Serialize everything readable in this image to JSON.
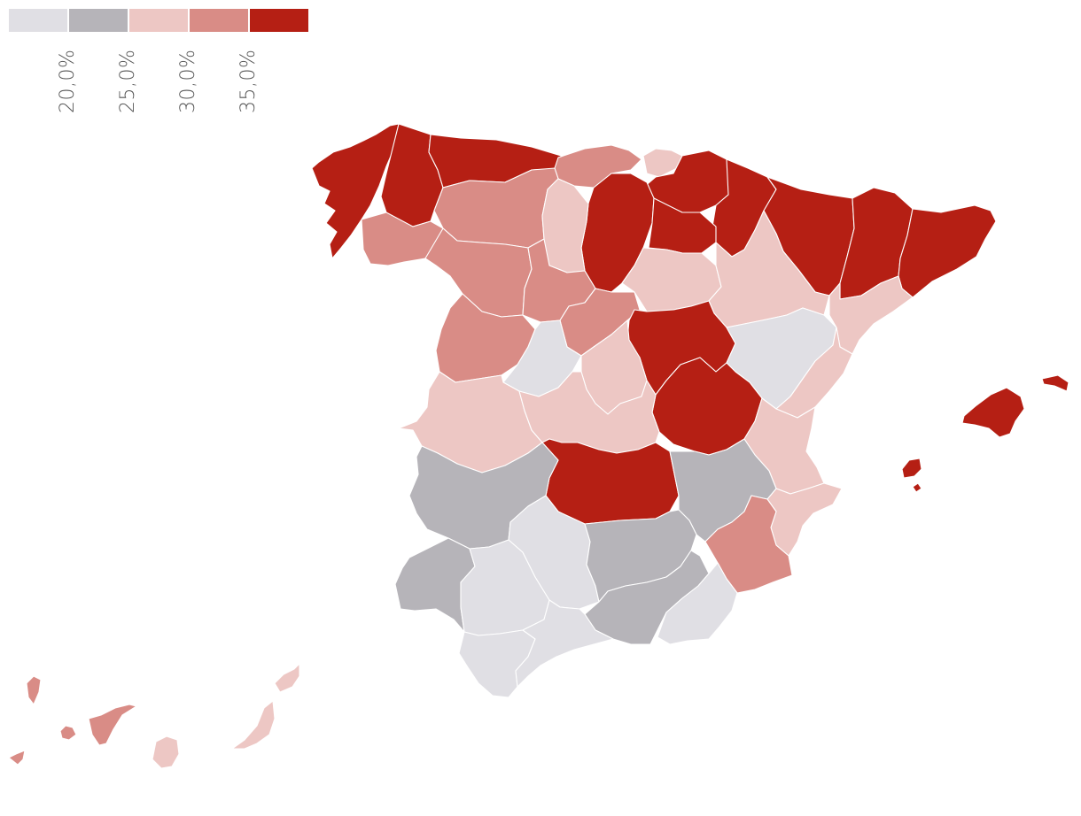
{
  "legend": {
    "bins": [
      {
        "color": "#e0dfe4"
      },
      {
        "color": "#b6b4b9"
      },
      {
        "color": "#edc7c4"
      },
      {
        "color": "#d98c86"
      },
      {
        "color": "#b51f14"
      }
    ],
    "labels": [
      "20,0%",
      "25,0%",
      "30,0%",
      "35,0%"
    ]
  },
  "map": {
    "regions": [
      {
        "id": "galicia-coast",
        "bin": 4
      },
      {
        "id": "lugo",
        "bin": 4
      },
      {
        "id": "asturias",
        "bin": 4
      },
      {
        "id": "cantabria",
        "bin": 3
      },
      {
        "id": "pais-vasco-1",
        "bin": 2
      },
      {
        "id": "pais-vasco-2",
        "bin": 4
      },
      {
        "id": "navarra",
        "bin": 4
      },
      {
        "id": "burgos",
        "bin": 4
      },
      {
        "id": "la-rioja",
        "bin": 4
      },
      {
        "id": "ourense",
        "bin": 3
      },
      {
        "id": "leon",
        "bin": 3
      },
      {
        "id": "palencia",
        "bin": 2
      },
      {
        "id": "zamora",
        "bin": 3
      },
      {
        "id": "valladolid",
        "bin": 3
      },
      {
        "id": "salamanca",
        "bin": 3
      },
      {
        "id": "segovia",
        "bin": 3
      },
      {
        "id": "avila",
        "bin": 0
      },
      {
        "id": "soria",
        "bin": 2
      },
      {
        "id": "huesca",
        "bin": 4
      },
      {
        "id": "lleida",
        "bin": 4
      },
      {
        "id": "girona-barcelona",
        "bin": 4
      },
      {
        "id": "zaragoza",
        "bin": 2
      },
      {
        "id": "tarragona",
        "bin": 2
      },
      {
        "id": "guadalajara",
        "bin": 4
      },
      {
        "id": "madrid",
        "bin": 2
      },
      {
        "id": "teruel",
        "bin": 0
      },
      {
        "id": "castellon",
        "bin": 2
      },
      {
        "id": "cuenca",
        "bin": 4
      },
      {
        "id": "caceres",
        "bin": 2
      },
      {
        "id": "toledo",
        "bin": 2
      },
      {
        "id": "valencia",
        "bin": 2
      },
      {
        "id": "alicante",
        "bin": 2
      },
      {
        "id": "ciudad-real",
        "bin": 4
      },
      {
        "id": "albacete",
        "bin": 1
      },
      {
        "id": "badajoz",
        "bin": 1
      },
      {
        "id": "huelva",
        "bin": 1
      },
      {
        "id": "sevilla",
        "bin": 0
      },
      {
        "id": "cordoba",
        "bin": 0
      },
      {
        "id": "jaen",
        "bin": 1
      },
      {
        "id": "granada",
        "bin": 1
      },
      {
        "id": "murcia",
        "bin": 3
      },
      {
        "id": "almeria",
        "bin": 0
      },
      {
        "id": "cadiz",
        "bin": 0
      },
      {
        "id": "malaga",
        "bin": 0
      },
      {
        "id": "mallorca",
        "bin": 4
      },
      {
        "id": "menorca",
        "bin": 4
      },
      {
        "id": "ibiza",
        "bin": 4
      },
      {
        "id": "formentera",
        "bin": 4
      },
      {
        "id": "la-palma",
        "bin": 3
      },
      {
        "id": "el-hierro",
        "bin": 3
      },
      {
        "id": "la-gomera",
        "bin": 3
      },
      {
        "id": "tenerife",
        "bin": 3
      },
      {
        "id": "gran-canaria",
        "bin": 2
      },
      {
        "id": "fuerteventura",
        "bin": 2
      },
      {
        "id": "lanzarote",
        "bin": 2
      }
    ]
  }
}
